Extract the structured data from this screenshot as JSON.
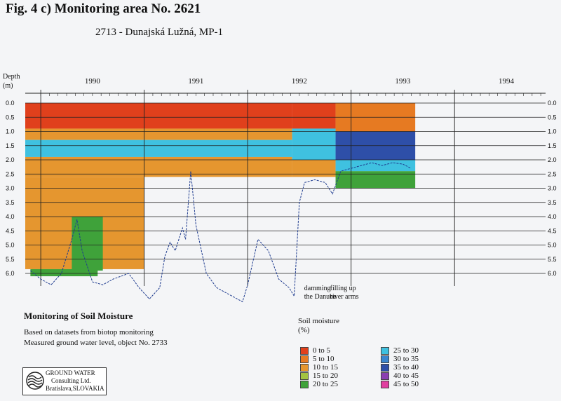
{
  "figure": {
    "title": "Fig. 4 c)  Monitoring area No. 2621",
    "subtitle": "2713 - Dunajská Lužná, MP-1",
    "depth_label_line1": "Depth",
    "depth_label_line2": "(m)"
  },
  "chart_data": {
    "type": "heatmap",
    "years": [
      "1990",
      "1991",
      "1992",
      "1993",
      "1994"
    ],
    "y_ticks": [
      "0.0",
      "0.5",
      "1.0",
      "1.5",
      "2.0",
      "2.5",
      "3.0",
      "3.5",
      "4.0",
      "4.5",
      "5.0",
      "5.5",
      "6.0"
    ],
    "ylim": [
      0,
      6
    ],
    "x_range": [
      1989.85,
      1994.88
    ],
    "soil_moisture_bands": [
      {
        "t0": 1989.85,
        "t1": 1992.43,
        "d0": 0.0,
        "d1": 0.9,
        "class": "0 to  5"
      },
      {
        "t0": 1989.85,
        "t1": 1992.43,
        "d0": 0.9,
        "d1": 1.3,
        "class": "10 to 15"
      },
      {
        "t0": 1989.85,
        "t1": 1992.43,
        "d0": 1.3,
        "d1": 1.9,
        "class": "25 to 30"
      },
      {
        "t0": 1989.85,
        "t1": 1992.43,
        "d0": 1.9,
        "d1": 2.6,
        "class": "10 to 15"
      },
      {
        "t0": 1989.85,
        "t1": 1991.0,
        "d0": 2.6,
        "d1": 5.85,
        "class": "10 to 15"
      },
      {
        "t0": 1989.9,
        "t1": 1990.55,
        "d0": 5.85,
        "d1": 6.1,
        "class": "20 to 25"
      },
      {
        "t0": 1990.3,
        "t1": 1990.6,
        "d0": 4.0,
        "d1": 5.9,
        "class": "20 to 25"
      },
      {
        "t0": 1992.43,
        "t1": 1992.85,
        "d0": 0.0,
        "d1": 0.9,
        "class": "0 to  5"
      },
      {
        "t0": 1992.43,
        "t1": 1992.85,
        "d0": 0.9,
        "d1": 2.0,
        "class": "25 to 30"
      },
      {
        "t0": 1992.43,
        "t1": 1992.85,
        "d0": 2.0,
        "d1": 2.6,
        "class": "10 to 15"
      },
      {
        "t0": 1992.85,
        "t1": 1993.62,
        "d0": 0.0,
        "d1": 1.0,
        "class": "5 to 10"
      },
      {
        "t0": 1992.85,
        "t1": 1993.62,
        "d0": 1.0,
        "d1": 2.0,
        "class": "35 to 40"
      },
      {
        "t0": 1992.85,
        "t1": 1993.62,
        "d0": 2.0,
        "d1": 2.4,
        "class": "25 to 30"
      },
      {
        "t0": 1992.85,
        "t1": 1993.62,
        "d0": 2.4,
        "d1": 3.0,
        "class": "20 to 25"
      }
    ],
    "groundwater_level_m": [
      {
        "t": 1989.9,
        "d": 5.9
      },
      {
        "t": 1990.0,
        "d": 6.2
      },
      {
        "t": 1990.1,
        "d": 6.4
      },
      {
        "t": 1990.2,
        "d": 6.0
      },
      {
        "t": 1990.3,
        "d": 4.8
      },
      {
        "t": 1990.35,
        "d": 4.1
      },
      {
        "t": 1990.4,
        "d": 5.2
      },
      {
        "t": 1990.5,
        "d": 6.3
      },
      {
        "t": 1990.6,
        "d": 6.4
      },
      {
        "t": 1990.7,
        "d": 6.2
      },
      {
        "t": 1990.85,
        "d": 6.0
      },
      {
        "t": 1990.95,
        "d": 6.5
      },
      {
        "t": 1991.05,
        "d": 6.9
      },
      {
        "t": 1991.15,
        "d": 6.5
      },
      {
        "t": 1991.2,
        "d": 5.4
      },
      {
        "t": 1991.25,
        "d": 4.9
      },
      {
        "t": 1991.3,
        "d": 5.2
      },
      {
        "t": 1991.37,
        "d": 4.4
      },
      {
        "t": 1991.4,
        "d": 4.8
      },
      {
        "t": 1991.45,
        "d": 2.4
      },
      {
        "t": 1991.5,
        "d": 4.3
      },
      {
        "t": 1991.6,
        "d": 6.0
      },
      {
        "t": 1991.7,
        "d": 6.5
      },
      {
        "t": 1991.85,
        "d": 6.8
      },
      {
        "t": 1991.95,
        "d": 7.0
      },
      {
        "t": 1992.0,
        "d": 6.4
      },
      {
        "t": 1992.1,
        "d": 4.8
      },
      {
        "t": 1992.2,
        "d": 5.2
      },
      {
        "t": 1992.3,
        "d": 6.2
      },
      {
        "t": 1992.4,
        "d": 6.5
      },
      {
        "t": 1992.45,
        "d": 6.8
      },
      {
        "t": 1992.5,
        "d": 3.5
      },
      {
        "t": 1992.55,
        "d": 2.8
      },
      {
        "t": 1992.65,
        "d": 2.7
      },
      {
        "t": 1992.75,
        "d": 2.8
      },
      {
        "t": 1992.82,
        "d": 3.2
      },
      {
        "t": 1992.9,
        "d": 2.4
      },
      {
        "t": 1993.0,
        "d": 2.3
      },
      {
        "t": 1993.1,
        "d": 2.2
      },
      {
        "t": 1993.2,
        "d": 2.1
      },
      {
        "t": 1993.3,
        "d": 2.2
      },
      {
        "t": 1993.4,
        "d": 2.1
      },
      {
        "t": 1993.5,
        "d": 2.15
      },
      {
        "t": 1993.58,
        "d": 2.3
      }
    ],
    "annotations": [
      {
        "line1": "damming",
        "line2": "the Danube",
        "t": 1992.75
      },
      {
        "line1": "filling up",
        "line2": "river arms",
        "t": 1993.0
      }
    ]
  },
  "section": {
    "title": "Monitoring of Soil Moisture",
    "line1": "Based on datasets from biotop monitoring",
    "line2": "Measured ground water level, object No. 2733"
  },
  "legend": {
    "title_line1": "Soil moisture",
    "title_line2": "(%)",
    "items": [
      {
        "label": "0  to   5",
        "color": "#e0401c"
      },
      {
        "label": "5  to  10",
        "color": "#e67a22"
      },
      {
        "label": "10  to  15",
        "color": "#e5962f"
      },
      {
        "label": "15  to  20",
        "color": "#a3c341"
      },
      {
        "label": "20  to  25",
        "color": "#3fa23a"
      },
      {
        "label": "25  to  30",
        "color": "#3fc1e0"
      },
      {
        "label": "30  to  35",
        "color": "#3b86cf"
      },
      {
        "label": "35  to  40",
        "color": "#2e4fa8"
      },
      {
        "label": "40  to  45",
        "color": "#8a3fb0"
      },
      {
        "label": "45  to  50",
        "color": "#e13fa0"
      }
    ]
  },
  "logo": {
    "line1": "GROUND WATER",
    "line2": "Consulting Ltd.",
    "line3": "Bratislava,SLOVAKIA"
  }
}
